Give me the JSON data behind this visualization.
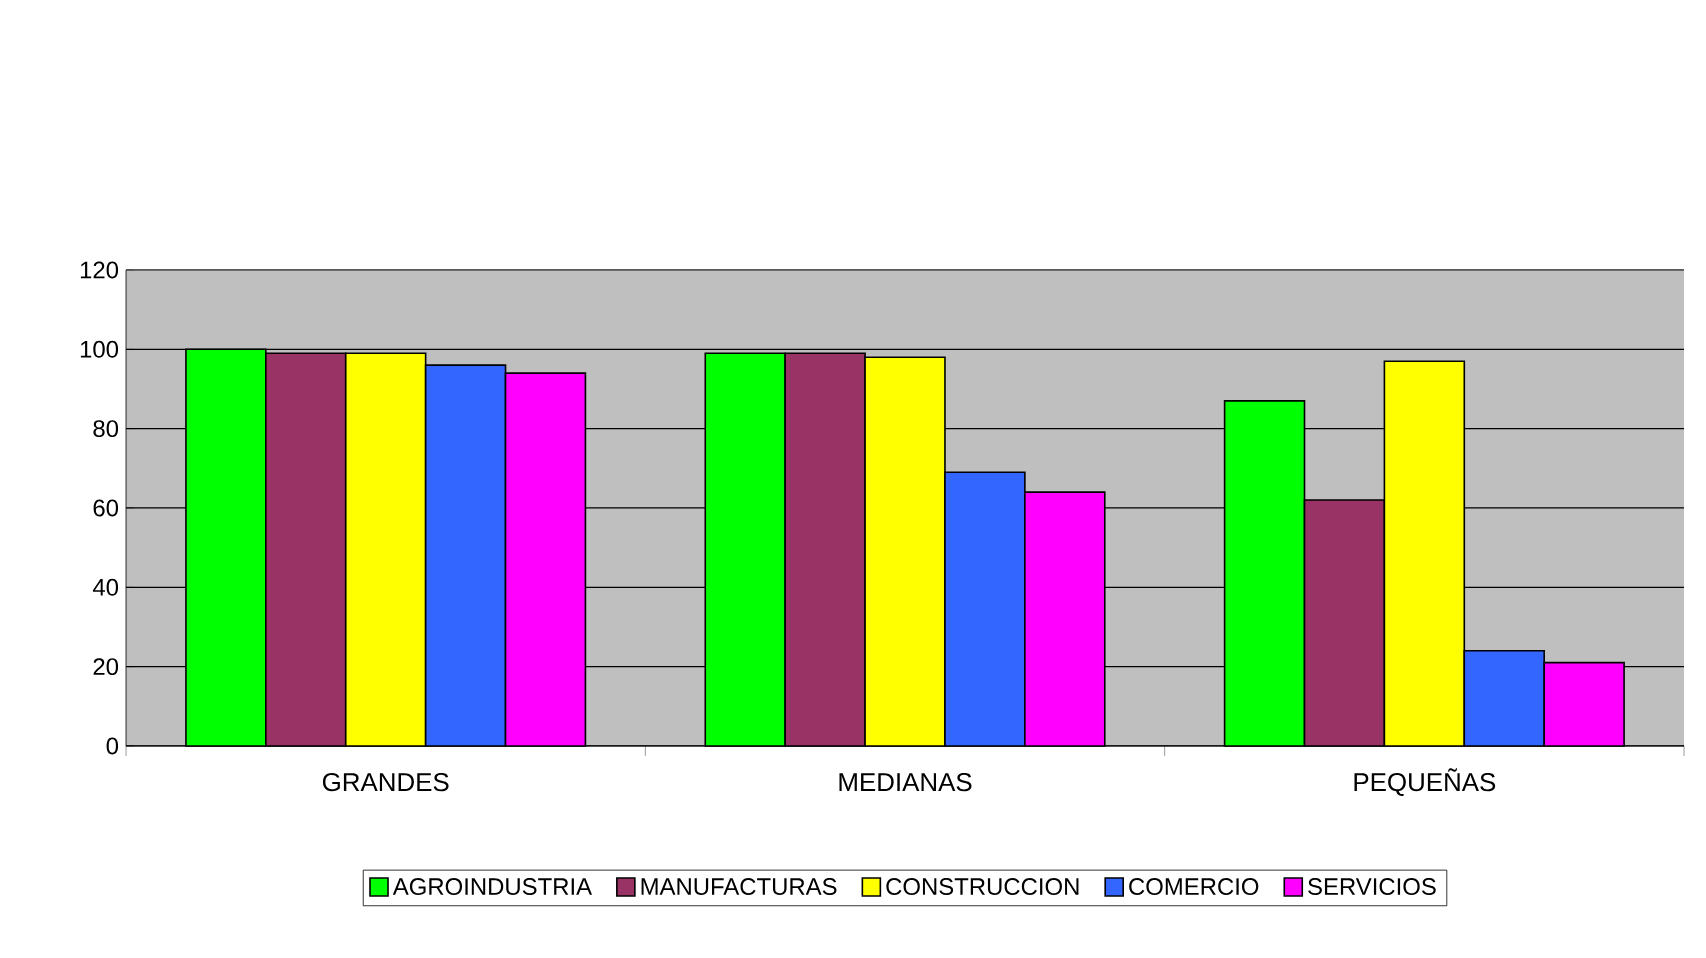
{
  "chart_data": {
    "type": "bar",
    "categories": [
      "GRANDES",
      "MEDIANAS",
      "PEQUEÑAS"
    ],
    "series": [
      {
        "name": "AGROINDUSTRIA",
        "color": "#00ff00",
        "values": [
          100,
          99,
          87
        ]
      },
      {
        "name": "MANUFACTURAS",
        "color": "#993366",
        "values": [
          99,
          99,
          62
        ]
      },
      {
        "name": "CONSTRUCCION",
        "color": "#ffff00",
        "values": [
          99,
          98,
          97
        ]
      },
      {
        "name": "COMERCIO",
        "color": "#3366ff",
        "values": [
          96,
          69,
          24
        ]
      },
      {
        "name": "SERVICIOS",
        "color": "#ff00ff",
        "values": [
          94,
          64,
          21
        ]
      }
    ],
    "ylim": [
      0,
      120
    ],
    "yticks": [
      0,
      20,
      40,
      60,
      80,
      100,
      120
    ],
    "grid": "y",
    "legend": "bottom"
  }
}
